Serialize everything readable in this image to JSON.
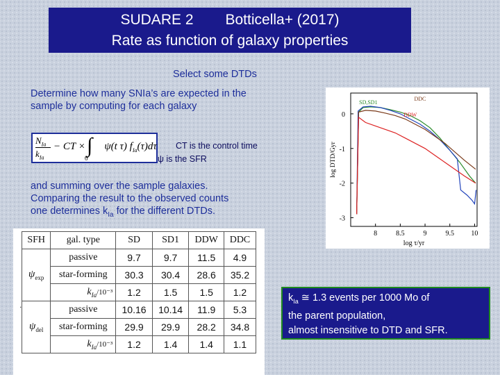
{
  "title": {
    "line1_left": "SUDARE 2",
    "line1_right": "Botticella+ (2017)",
    "line2": "Rate as function of galaxy properties"
  },
  "body": {
    "select_dtds": "Select some DTDs",
    "determine_line1": "Determine how many SNIa’s are expected in the",
    "determine_line2": "sample by computing for each galaxy",
    "ct_note": "CT is the control time",
    "psi_note": "ψ is the SFR",
    "summing": "and summing over the sample galaxies.",
    "comparing_line1": "Comparing the result to the observed counts",
    "comparing_line2_pre": "one determines k",
    "comparing_line2_sub": "Ia",
    "comparing_line2_post": " for the different DTDs."
  },
  "formula": {
    "num": "N",
    "num_sub": "Ia",
    "den": "k",
    "den_sub": "Ia",
    "rest": "− CT ×",
    "integrand": "ψ(t   τ) f",
    "integrand_sub": "Ia",
    "integrand_tail": "(τ)dτ",
    "lower_limit": "0"
  },
  "table": {
    "headers": [
      "SFH",
      "gal. type",
      "SD",
      "SD1",
      "DDW",
      "DDC"
    ],
    "groups": [
      {
        "sfh": "ψ",
        "sfh_sub": "exp",
        "rows": [
          {
            "gal": "passive",
            "values": [
              "9.7",
              "9.7",
              "11.5",
              "4.9"
            ]
          },
          {
            "gal": "star-forming",
            "values": [
              "30.3",
              "30.4",
              "28.6",
              "35.2"
            ]
          },
          {
            "gal": "k",
            "gal_sub": "Ia",
            "gal_tail": "/10⁻³",
            "values": [
              "1.2",
              "1.5",
              "1.5",
              "1.2"
            ]
          }
        ]
      },
      {
        "sfh": "ψ",
        "sfh_sub": "del",
        "rows": [
          {
            "gal": "passive",
            "values": [
              "10.16",
              "10.14",
              "11.9",
              "5.3"
            ]
          },
          {
            "gal": "star-forming",
            "values": [
              "29.9",
              "29.9",
              "28.2",
              "34.8"
            ]
          },
          {
            "gal": "k",
            "gal_sub": "Ia",
            "gal_tail": "/10⁻³",
            "values": [
              "1.2",
              "1.4",
              "1.4",
              "1.1"
            ]
          }
        ]
      }
    ]
  },
  "side_dot": ".",
  "result": {
    "k": "k",
    "k_sub": "Ia",
    "line1_tail": " ≅ 1.3 events per 1000 Mo of",
    "line2": "the parent population,",
    "line3": "almost insensitive to DTD and SFR."
  },
  "chart_data": {
    "type": "line",
    "xlabel": "log τ/yr",
    "ylabel": "log DTD/Gyr",
    "xlim": [
      7.5,
      10.05
    ],
    "ylim": [
      -3.25,
      0.6
    ],
    "xticks": [
      "8",
      "8.5",
      "9",
      "9.5",
      "10"
    ],
    "yticks": [
      "0",
      "-1",
      "-2",
      "-3"
    ],
    "series": [
      {
        "name": "SD,SD1",
        "color": "#2a8a2a",
        "x": [
          7.62,
          7.66,
          7.75,
          7.9,
          8.1,
          8.3,
          8.5,
          8.7,
          8.9,
          9.1,
          9.3,
          9.5,
          9.7,
          9.9,
          10.02
        ],
        "y": [
          -2.9,
          0.05,
          0.18,
          0.2,
          0.18,
          0.12,
          0.05,
          -0.05,
          -0.2,
          -0.4,
          -0.7,
          -1.05,
          -1.4,
          -1.8,
          -2.0
        ]
      },
      {
        "name": "SD,SD1",
        "color": "#2244bb",
        "x": [
          7.62,
          7.65,
          7.75,
          7.9,
          8.1,
          8.3,
          8.5,
          8.7,
          8.9,
          9.1,
          9.3,
          9.5,
          9.65,
          9.72,
          9.85,
          9.95,
          10.0,
          10.03
        ],
        "y": [
          -2.9,
          0.08,
          0.2,
          0.22,
          0.18,
          0.1,
          0.0,
          -0.15,
          -0.3,
          -0.5,
          -0.75,
          -1.05,
          -1.3,
          -2.2,
          -2.35,
          -2.5,
          -2.6,
          -2.2
        ]
      },
      {
        "name": "DDC",
        "color": "#7a3a1a",
        "x": [
          7.62,
          7.66,
          7.8,
          8.0,
          8.2,
          8.4,
          8.6,
          8.8,
          9.0,
          9.2,
          9.4,
          9.6,
          9.8,
          10.02
        ],
        "y": [
          -2.9,
          0.05,
          0.1,
          0.08,
          0.02,
          -0.05,
          -0.15,
          -0.3,
          -0.45,
          -0.65,
          -0.85,
          -1.1,
          -1.35,
          -1.6
        ]
      },
      {
        "name": "DDW",
        "color": "#dd2222",
        "x": [
          7.62,
          7.66,
          7.8,
          8.0,
          8.2,
          8.4,
          8.6,
          8.8,
          9.0,
          9.2,
          9.4,
          9.6,
          9.8,
          10.02
        ],
        "y": [
          -2.9,
          -0.1,
          -0.25,
          -0.35,
          -0.45,
          -0.55,
          -0.7,
          -0.85,
          -1.0,
          -1.2,
          -1.4,
          -1.6,
          -1.8,
          -2.0
        ]
      }
    ]
  }
}
